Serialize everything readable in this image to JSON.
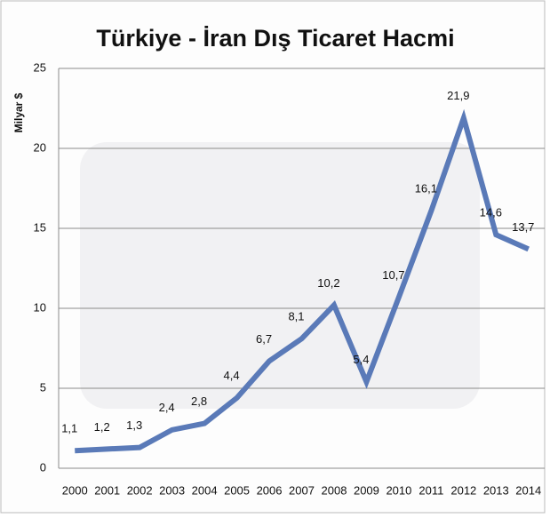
{
  "chart_data": {
    "type": "line",
    "title": "Türkiye - İran Dış Ticaret Hacmi",
    "y_label": "Milyar $",
    "categories": [
      "2000",
      "2001",
      "2002",
      "2003",
      "2004",
      "2005",
      "2006",
      "2007",
      "2008",
      "2009",
      "2010",
      "2011",
      "2012",
      "2013",
      "2014"
    ],
    "values": [
      1.1,
      1.2,
      1.3,
      2.4,
      2.8,
      4.4,
      6.7,
      8.1,
      10.2,
      5.4,
      10.7,
      16.1,
      21.9,
      14.6,
      13.7
    ],
    "value_labels": [
      "1,1",
      "1,2",
      "1,3",
      "2,4",
      "2,8",
      "4,4",
      "6,7",
      "8,1",
      "10,2",
      "5,4",
      "10,7",
      "16,1",
      "21,9",
      "14,6",
      "13,7"
    ],
    "color": "#5a7ab8",
    "ylim": [
      0,
      25
    ],
    "yticks": [
      0,
      5,
      10,
      15,
      20,
      25
    ],
    "grid": true
  }
}
